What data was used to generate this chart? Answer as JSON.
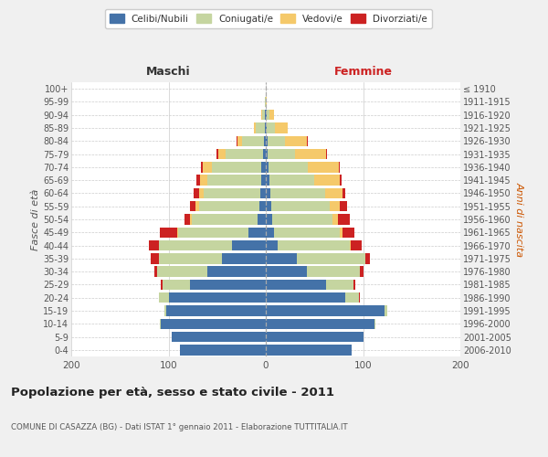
{
  "age_groups": [
    "0-4",
    "5-9",
    "10-14",
    "15-19",
    "20-24",
    "25-29",
    "30-34",
    "35-39",
    "40-44",
    "45-49",
    "50-54",
    "55-59",
    "60-64",
    "65-69",
    "70-74",
    "75-79",
    "80-84",
    "85-89",
    "90-94",
    "95-99",
    "100+"
  ],
  "birth_years": [
    "2006-2010",
    "2001-2005",
    "1996-2000",
    "1991-1995",
    "1986-1990",
    "1981-1985",
    "1976-1980",
    "1971-1975",
    "1966-1970",
    "1961-1965",
    "1956-1960",
    "1951-1955",
    "1946-1950",
    "1941-1945",
    "1936-1940",
    "1931-1935",
    "1926-1930",
    "1921-1925",
    "1916-1920",
    "1911-1915",
    "≤ 1910"
  ],
  "colors": {
    "celibi": "#4472a8",
    "coniugati": "#c5d5a0",
    "vedovi": "#f5c96a",
    "divorziati": "#cc2222"
  },
  "males": {
    "celibi": [
      88,
      97,
      108,
      102,
      100,
      78,
      60,
      45,
      35,
      18,
      8,
      7,
      6,
      5,
      5,
      3,
      2,
      1,
      1,
      0,
      0
    ],
    "coniugati": [
      0,
      0,
      1,
      2,
      10,
      28,
      52,
      65,
      75,
      72,
      68,
      62,
      58,
      55,
      50,
      38,
      22,
      9,
      3,
      1,
      0
    ],
    "vedovi": [
      0,
      0,
      0,
      0,
      0,
      0,
      0,
      0,
      0,
      1,
      2,
      3,
      5,
      8,
      10,
      8,
      5,
      2,
      1,
      0,
      0
    ],
    "divorziati": [
      0,
      0,
      0,
      0,
      0,
      2,
      3,
      8,
      10,
      18,
      6,
      6,
      5,
      3,
      2,
      2,
      1,
      0,
      0,
      0,
      0
    ]
  },
  "females": {
    "nubili": [
      88,
      100,
      112,
      122,
      82,
      62,
      42,
      32,
      12,
      8,
      7,
      6,
      5,
      4,
      3,
      2,
      2,
      1,
      1,
      0,
      0
    ],
    "coniugati": [
      0,
      0,
      1,
      3,
      14,
      28,
      55,
      70,
      74,
      68,
      62,
      60,
      56,
      46,
      40,
      28,
      18,
      8,
      3,
      0,
      0
    ],
    "vedovi": [
      0,
      0,
      0,
      0,
      0,
      0,
      0,
      0,
      1,
      3,
      5,
      10,
      18,
      26,
      32,
      32,
      22,
      14,
      4,
      1,
      0
    ],
    "divorziati": [
      0,
      0,
      0,
      0,
      1,
      2,
      3,
      5,
      12,
      12,
      12,
      8,
      3,
      2,
      1,
      1,
      1,
      0,
      0,
      0,
      0
    ]
  },
  "title": "Popolazione per età, sesso e stato civile - 2011",
  "subtitle": "COMUNE DI CASAZZA (BG) - Dati ISTAT 1° gennaio 2011 - Elaborazione TUTTITALIA.IT",
  "xlabel_left": "Maschi",
  "xlabel_right": "Femmine",
  "ylabel_left": "Fasce di età",
  "ylabel_right": "Anni di nascita",
  "xlim": 200,
  "background_color": "#f0f0f0",
  "plot_background": "#ffffff",
  "legend_labels": [
    "Celibi/Nubili",
    "Coniugati/e",
    "Vedovi/e",
    "Divorziati/e"
  ]
}
